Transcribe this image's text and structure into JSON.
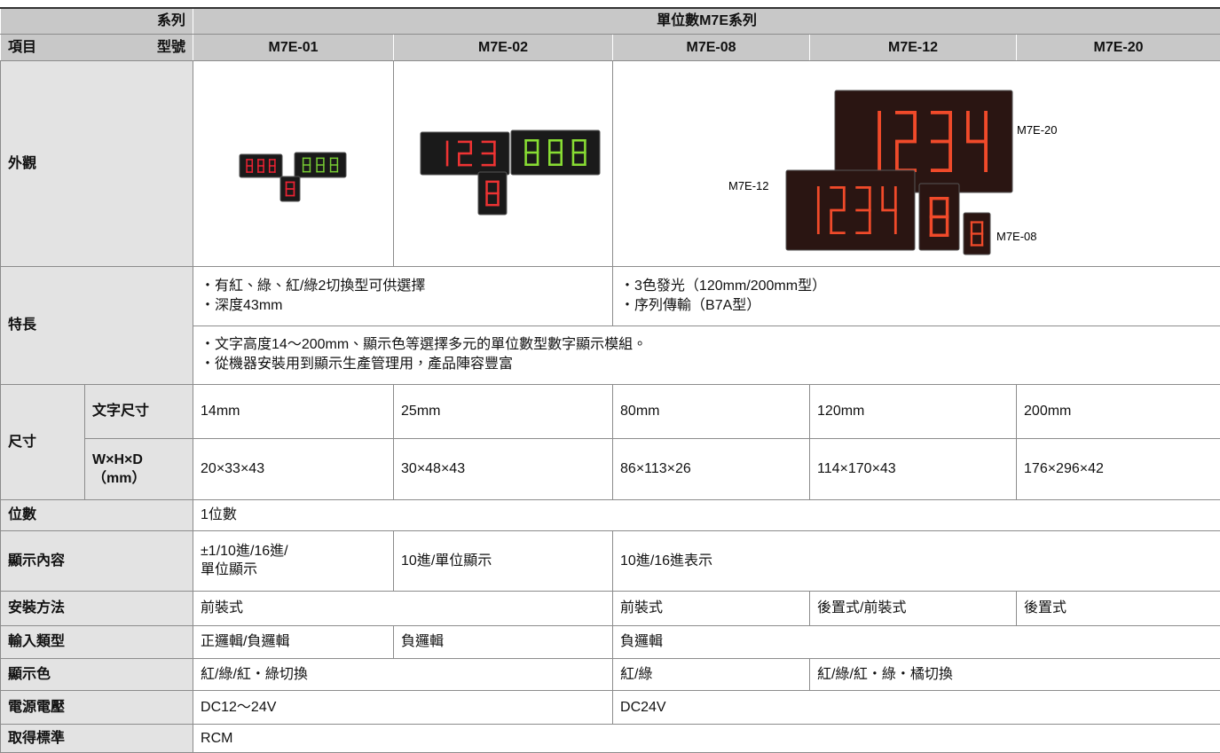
{
  "header": {
    "series": "系列",
    "series_value": "單位數M7E系列",
    "item": "項目",
    "model": "型號",
    "models": [
      "M7E-01",
      "M7E-02",
      "M7E-08",
      "M7E-12",
      "M7E-20"
    ]
  },
  "appearance": {
    "label": "外觀",
    "image_labels": [
      "M7E-20",
      "M7E-12",
      "M7E-08"
    ]
  },
  "features": {
    "label": "特長",
    "group_a": [
      "・有紅、綠、紅/綠2切換型可供選擇",
      "・深度43mm"
    ],
    "group_b": [
      "・3色發光（120mm/200mm型）",
      "・序列傳輸（B7A型）"
    ],
    "common": [
      "・文字高度14～200mm、顯示色等選擇多元的單位數型數字顯示模組。",
      "・從機器安裝用到顯示生產管理用，產品陣容豐富"
    ]
  },
  "size": {
    "label": "尺寸",
    "char_size": {
      "label": "文字尺寸",
      "values": [
        "14mm",
        "25mm",
        "80mm",
        "120mm",
        "200mm"
      ]
    },
    "dimensions": {
      "label": "W×H×D",
      "unit": "（mm）",
      "values": [
        "20×33×43",
        "30×48×43",
        "86×113×26",
        "114×170×43",
        "176×296×42"
      ]
    }
  },
  "rows": [
    {
      "label": "位數",
      "cells": [
        "1位數"
      ]
    },
    {
      "label": "顯示內容",
      "cells": [
        "±1/10進/16進/\n單位顯示",
        "10進/單位顯示",
        "10進/16進表示"
      ]
    },
    {
      "label": "安裝方法",
      "cells": [
        "前裝式",
        "前裝式",
        "後置式/前裝式",
        "後置式"
      ]
    },
    {
      "label": "輸入類型",
      "cells": [
        "正邏輯/負邏輯",
        "負邏輯",
        "負邏輯"
      ]
    },
    {
      "label": "顯示色",
      "cells": [
        "紅/綠/紅・綠切換",
        "紅/綠",
        "紅/綠/紅・綠・橘切換"
      ]
    },
    {
      "label": "電源電壓",
      "cells": [
        "DC12～24V",
        "DC24V"
      ]
    },
    {
      "label": "取得標準",
      "cells": [
        "RCM"
      ]
    }
  ]
}
